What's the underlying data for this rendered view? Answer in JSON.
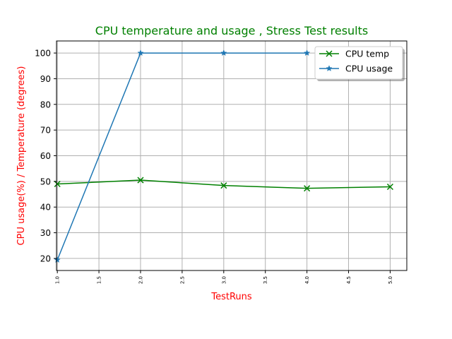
{
  "chart_data": {
    "type": "line",
    "title": "CPU temperature and usage , Stress Test results",
    "xlabel": "TestRuns",
    "ylabel": "CPU usage(%) / Temperature (degrees)",
    "xlim": [
      0.99,
      5.2
    ],
    "ylim": [
      15.3,
      104.7
    ],
    "x_ticks": [
      1.0,
      1.5,
      2.0,
      2.5,
      3.0,
      3.5,
      4.0,
      4.5,
      5.0
    ],
    "x_tick_labels": [
      "1.0",
      "1.5",
      "2.0",
      "2.5",
      "3.0",
      "3.5",
      "4.0",
      "4.5",
      "5.0"
    ],
    "y_ticks": [
      20,
      30,
      40,
      50,
      60,
      70,
      80,
      90,
      100
    ],
    "y_tick_labels": [
      "20",
      "30",
      "40",
      "50",
      "60",
      "70",
      "80",
      "90",
      "100"
    ],
    "grid": true,
    "legend_position": "top-right",
    "series": [
      {
        "name": "CPU temp",
        "color": "#008000",
        "marker": "x",
        "x": [
          1,
          2,
          3,
          4,
          5
        ],
        "values": [
          49.0,
          50.5,
          48.4,
          47.3,
          47.9
        ]
      },
      {
        "name": "CPU usage",
        "color": "#1f77b4",
        "marker": "star",
        "x": [
          1,
          2,
          3,
          4
        ],
        "values": [
          19.4,
          100,
          100,
          100
        ]
      }
    ],
    "colors": {
      "title": "#008000",
      "axis_label": "#ff0000",
      "grid": "#b0b0b0"
    }
  }
}
